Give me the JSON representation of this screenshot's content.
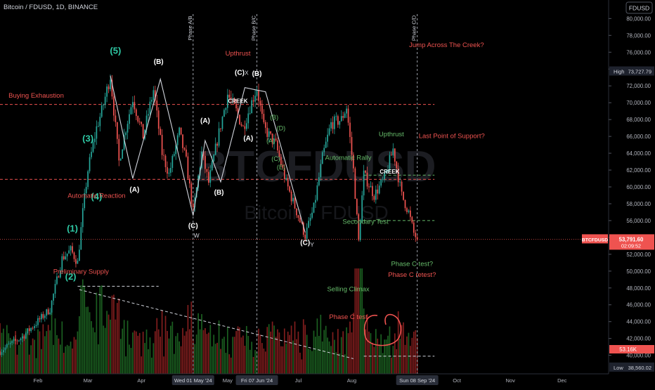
{
  "header": {
    "symbol_line": "Bitcoin / FDUSD, 1D, BINANCE",
    "currency_button": "FDUSD"
  },
  "watermark": {
    "ticker": "BTCFDUSD",
    "name": "Bitcoin · FDUSD"
  },
  "colors": {
    "bg": "#000000",
    "up": "#26a69a",
    "down": "#ef5350",
    "vol_up": "#1b5e20",
    "vol_down": "#7f1d1d",
    "label_red": "#ef5350",
    "label_green": "#66bb6a",
    "wave_teal": "#2fc9a5",
    "line_white": "#d1d4dc"
  },
  "chart_data": {
    "type": "candlestick",
    "title": "Bitcoin / FDUSD, 1D, BINANCE",
    "y_axis": {
      "ticks": [
        80000,
        78000,
        76000,
        74000,
        72000,
        70000,
        68000,
        66000,
        64000,
        62000,
        60000,
        58000,
        56000,
        54000,
        52000,
        50000,
        48000,
        46000,
        44000,
        42000,
        40000
      ],
      "tick_labels": [
        "80,000.00",
        "78,000.00",
        "76,000.00",
        "74,000.00",
        "72,000.00",
        "70,000.00",
        "68,000.00",
        "66,000.00",
        "64,000.00",
        "62,000.00",
        "60,000.00",
        "58,000.00",
        "56,000.00",
        "54,000.00",
        "52,000.00",
        "50,000.00",
        "48,000.00",
        "46,000.00",
        "44,000.00",
        "42,000.00",
        "40,000.00"
      ],
      "ylim": [
        37800,
        82200
      ]
    },
    "x_axis": {
      "labels": [
        "Feb",
        "Mar",
        "Apr",
        "May",
        "Jul",
        "Aug",
        "Oct",
        "Nov",
        "Dec"
      ],
      "label_dates": [
        "2024-02-01",
        "2024-03-01",
        "2024-04-01",
        "2024-05-21",
        "2024-07-01",
        "2024-08-01",
        "2024-10-01",
        "2024-11-01",
        "2024-12-01"
      ],
      "highlight_labels": [
        "Wed 01 May '24",
        "Fri 07 Jun '24",
        "Sun 08 Sep '24"
      ],
      "highlight_dates": [
        "2024-05-01",
        "2024-06-07",
        "2024-09-08"
      ],
      "range": [
        "2024-01-10",
        "2024-12-28"
      ]
    },
    "price_path": [
      [
        "2024-01-10",
        40500
      ],
      [
        "2024-01-23",
        42200
      ],
      [
        "2024-02-08",
        45500
      ],
      [
        "2024-02-15",
        51500
      ],
      [
        "2024-02-20",
        52500
      ],
      [
        "2024-02-24",
        51000
      ],
      [
        "2024-02-27",
        57000
      ],
      [
        "2024-03-01",
        62000
      ],
      [
        "2024-03-06",
        67000
      ],
      [
        "2024-03-09",
        69000
      ],
      [
        "2024-03-14",
        73200
      ],
      [
        "2024-03-19",
        63000
      ],
      [
        "2024-03-23",
        67000
      ],
      [
        "2024-03-27",
        70500
      ],
      [
        "2024-04-02",
        66000
      ],
      [
        "2024-04-08",
        71500
      ],
      [
        "2024-04-13",
        64000
      ],
      [
        "2024-04-17",
        61500
      ],
      [
        "2024-04-23",
        66500
      ],
      [
        "2024-04-27",
        63000
      ],
      [
        "2024-05-01",
        57000
      ],
      [
        "2024-05-06",
        64000
      ],
      [
        "2024-05-10",
        60500
      ],
      [
        "2024-05-15",
        65500
      ],
      [
        "2024-05-21",
        71000
      ],
      [
        "2024-05-26",
        69000
      ],
      [
        "2024-05-30",
        67000
      ],
      [
        "2024-06-03",
        69500
      ],
      [
        "2024-06-07",
        71800
      ],
      [
        "2024-06-11",
        67000
      ],
      [
        "2024-06-18",
        65000
      ],
      [
        "2024-06-24",
        60500
      ],
      [
        "2024-07-05",
        54200
      ],
      [
        "2024-07-10",
        57500
      ],
      [
        "2024-07-15",
        63500
      ],
      [
        "2024-07-20",
        67500
      ],
      [
        "2024-07-26",
        68000
      ],
      [
        "2024-07-29",
        69500
      ],
      [
        "2024-08-02",
        62000
      ],
      [
        "2024-08-05",
        53500
      ],
      [
        "2024-08-08",
        61500
      ],
      [
        "2024-08-14",
        59000
      ],
      [
        "2024-08-20",
        61000
      ],
      [
        "2024-08-25",
        64500
      ],
      [
        "2024-08-30",
        59000
      ],
      [
        "2024-09-03",
        57000
      ],
      [
        "2024-09-06",
        54500
      ],
      [
        "2024-09-08",
        53791.6
      ]
    ],
    "volume_scale": {
      "current_label": "53.16K"
    },
    "price_badges": {
      "high": {
        "label": "High",
        "value": "73,727.79",
        "y": 73727.79
      },
      "low": {
        "label": "Low",
        "value": "38,560.02",
        "y": 38560.02
      },
      "last": {
        "symbol": "BTCFDUSD",
        "value": "53,791.60",
        "countdown": "02:09:52",
        "y": 53791.6
      }
    },
    "phase_lines": [
      {
        "date": "2024-05-01",
        "label": "Phase A/B"
      },
      {
        "date": "2024-06-07",
        "label": "Phase B/C"
      },
      {
        "date": "2024-09-08",
        "label": "Phase C/D"
      }
    ],
    "horizontal_lines": [
      {
        "y": 69800,
        "from": "2024-01-10",
        "to": "2024-09-18",
        "color": "#ef5350"
      },
      {
        "y": 60900,
        "from": "2024-01-10",
        "to": "2024-09-18",
        "color": "#ef5350"
      },
      {
        "y": 61400,
        "from": "2024-08-08",
        "to": "2024-09-18",
        "color": "#66bb6a"
      },
      {
        "y": 56000,
        "from": "2024-08-02",
        "to": "2024-09-18",
        "color": "#66bb6a"
      },
      {
        "y": 48200,
        "from": "2024-02-24",
        "to": "2024-04-11",
        "color": "#d1d4dc"
      },
      {
        "y": 39900,
        "from": "2024-08-08",
        "to": "2024-09-18",
        "color": "#d1d4dc"
      }
    ],
    "trend_line": {
      "from": [
        "2024-02-25",
        47800
      ],
      "to": [
        "2024-08-02",
        39600
      ]
    },
    "zigzag": [
      [
        "2024-03-14",
        73200
      ],
      [
        "2024-03-27",
        61000
      ],
      [
        "2024-04-12",
        72800
      ],
      [
        "2024-05-01",
        56600
      ],
      [
        "2024-05-08",
        65500
      ],
      [
        "2024-05-17",
        60600
      ],
      [
        "2024-05-31",
        71800
      ],
      [
        "2024-06-07",
        71500
      ],
      [
        "2024-06-12",
        71300
      ],
      [
        "2024-07-05",
        54600
      ]
    ],
    "waves_primary": [
      {
        "text": "(1)",
        "date": "2024-02-21",
        "y": 54700
      },
      {
        "text": "(2)",
        "date": "2024-02-20",
        "y": 49000
      },
      {
        "text": "(3)",
        "date": "2024-03-01",
        "y": 65400
      },
      {
        "text": "(4)",
        "date": "2024-03-06",
        "y": 58500
      },
      {
        "text": "(5)",
        "date": "2024-03-17",
        "y": 75800
      }
    ],
    "waves_secondary": [
      {
        "text": "(A)",
        "date": "2024-03-28",
        "y": 59400
      },
      {
        "text": "(B)",
        "date": "2024-04-11",
        "y": 74600
      },
      {
        "text": "(C)",
        "date": "2024-05-01",
        "y": 55100
      },
      {
        "text": "(A)",
        "date": "2024-05-08",
        "y": 67600
      },
      {
        "text": "(B)",
        "date": "2024-05-16",
        "y": 59100
      },
      {
        "text": "(C)",
        "date": "2024-05-28",
        "y": 73300
      },
      {
        "text": "(A)",
        "date": "2024-06-02",
        "y": 65500
      },
      {
        "text": "(B)",
        "date": "2024-06-07",
        "y": 73200
      },
      {
        "text": "(C)",
        "date": "2024-07-05",
        "y": 53100
      }
    ],
    "waves_small": [
      {
        "text": "(A)",
        "date": "2024-06-15",
        "y": 65200
      },
      {
        "text": "(B)",
        "date": "2024-06-17",
        "y": 68000
      },
      {
        "text": "(C)",
        "date": "2024-06-18",
        "y": 63100
      },
      {
        "text": "(D)",
        "date": "2024-06-21",
        "y": 66700
      },
      {
        "text": "(E)",
        "date": "2024-06-21",
        "y": 62100
      }
    ],
    "letters": [
      {
        "text": "W",
        "date": "2024-05-03",
        "y": 54000
      },
      {
        "text": "X",
        "date": "2024-06-01",
        "y": 73300
      },
      {
        "text": "Y",
        "date": "2024-07-09",
        "y": 52900
      }
    ],
    "annotations_red": [
      {
        "text": "Buying Exhaustion",
        "date": "2024-01-31",
        "y": 70600
      },
      {
        "text": "Automatic Reaction",
        "date": "2024-03-06",
        "y": 58700
      },
      {
        "text": "Upthrust",
        "date": "2024-05-27",
        "y": 75600
      },
      {
        "text": "Preliminary Supply",
        "date": "2024-02-26",
        "y": 49700
      },
      {
        "text": "Phase C test",
        "date": "2024-07-30",
        "y": 44300
      },
      {
        "text": "Phase C retest?",
        "date": "2024-09-05",
        "y": 49300
      },
      {
        "text": "Jump Across The Creek?",
        "date": "2024-09-25",
        "y": 76600
      },
      {
        "text": "Last Point of Support?",
        "date": "2024-09-28",
        "y": 65800
      }
    ],
    "annotations_green": [
      {
        "text": "Upthrust",
        "date": "2024-08-24",
        "y": 66000
      },
      {
        "text": "Automatic Rally",
        "date": "2024-07-30",
        "y": 63200
      },
      {
        "text": "Secondary Test",
        "date": "2024-08-09",
        "y": 55600
      },
      {
        "text": "Selling Climax",
        "date": "2024-07-30",
        "y": 47600
      },
      {
        "text": "Phase C test?",
        "date": "2024-09-05",
        "y": 50600
      }
    ],
    "creek_labels": [
      {
        "text": "CREEK",
        "date": "2024-05-27",
        "y": 69800
      },
      {
        "text": "CREEK",
        "date": "2024-08-23",
        "y": 61400
      }
    ]
  }
}
